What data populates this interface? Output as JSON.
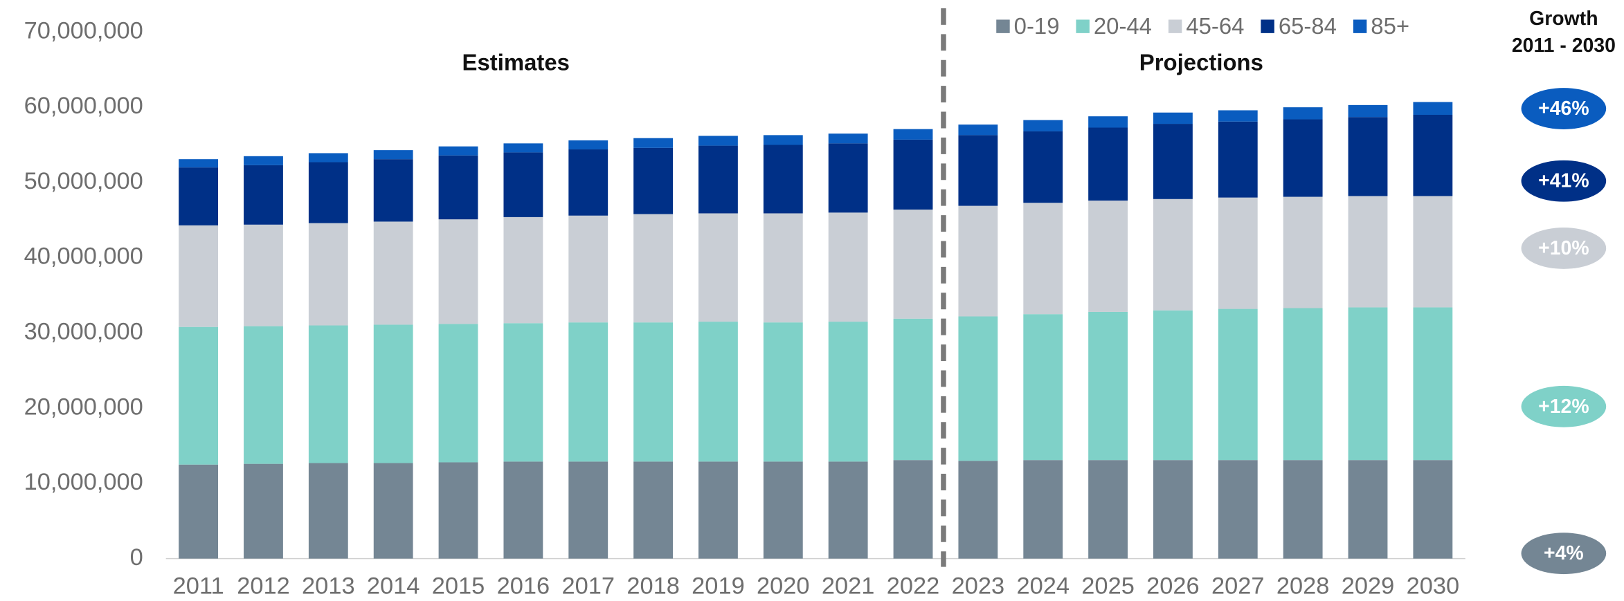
{
  "chart_data": {
    "type": "stacked_bar",
    "categories": [
      "2011",
      "2012",
      "2013",
      "2014",
      "2015",
      "2016",
      "2017",
      "2018",
      "2019",
      "2020",
      "2021",
      "2022",
      "2023",
      "2024",
      "2025",
      "2026",
      "2027",
      "2028",
      "2029",
      "2030"
    ],
    "series": [
      {
        "name": "0-19",
        "color": "#748694",
        "values": [
          12500000,
          12600000,
          12700000,
          12700000,
          12800000,
          12900000,
          12900000,
          12900000,
          12900000,
          12900000,
          12900000,
          13100000,
          13000000,
          13100000,
          13100000,
          13100000,
          13100000,
          13100000,
          13100000,
          13100000
        ]
      },
      {
        "name": "20-44",
        "color": "#7fd1c8",
        "values": [
          18300000,
          18300000,
          18300000,
          18400000,
          18400000,
          18400000,
          18500000,
          18500000,
          18600000,
          18500000,
          18600000,
          18800000,
          19200000,
          19400000,
          19700000,
          19900000,
          20100000,
          20200000,
          20300000,
          20300000
        ]
      },
      {
        "name": "45-64",
        "color": "#c9ced5",
        "values": [
          13500000,
          13500000,
          13600000,
          13700000,
          13900000,
          14100000,
          14200000,
          14400000,
          14400000,
          14500000,
          14500000,
          14500000,
          14700000,
          14800000,
          14800000,
          14800000,
          14800000,
          14800000,
          14800000,
          14800000
        ]
      },
      {
        "name": "65-84",
        "color": "#003087",
        "values": [
          7700000,
          7900000,
          8100000,
          8300000,
          8500000,
          8600000,
          8800000,
          8800000,
          9000000,
          9100000,
          9200000,
          9300000,
          9400000,
          9500000,
          9700000,
          10000000,
          10100000,
          10300000,
          10500000,
          10800000
        ]
      },
      {
        "name": "85+",
        "color": "#0a5cbf",
        "values": [
          1100000,
          1200000,
          1200000,
          1200000,
          1200000,
          1200000,
          1200000,
          1300000,
          1300000,
          1300000,
          1300000,
          1400000,
          1400000,
          1500000,
          1500000,
          1500000,
          1500000,
          1600000,
          1600000,
          1700000
        ]
      }
    ],
    "ylim": [
      0,
      70000000
    ],
    "yticks": [
      0,
      {
        "value": 10000000,
        "label": "10,000,000"
      },
      {
        "value": 20000000,
        "label": "20,000,000"
      },
      {
        "value": 30000000,
        "label": "30,000,000"
      },
      {
        "value": 40000000,
        "label": "40,000,000"
      },
      {
        "value": 50000000,
        "label": "50,000,000"
      },
      {
        "value": 60000000,
        "label": "60,000,000"
      },
      {
        "value": 70000000,
        "label": "70,000,000"
      }
    ],
    "annotations": [
      "Estimates",
      "Projections"
    ],
    "growth_title": [
      "Growth",
      "2011 - 2030"
    ],
    "growth": [
      {
        "label": "+46%",
        "color": "#0a5cbf"
      },
      {
        "label": "+41%",
        "color": "#003087"
      },
      {
        "label": "+10%",
        "color": "#c9ced5"
      },
      {
        "label": "+12%",
        "color": "#7fd1c8"
      },
      {
        "label": "+4%",
        "color": "#748694"
      }
    ],
    "legend": "top-right"
  }
}
